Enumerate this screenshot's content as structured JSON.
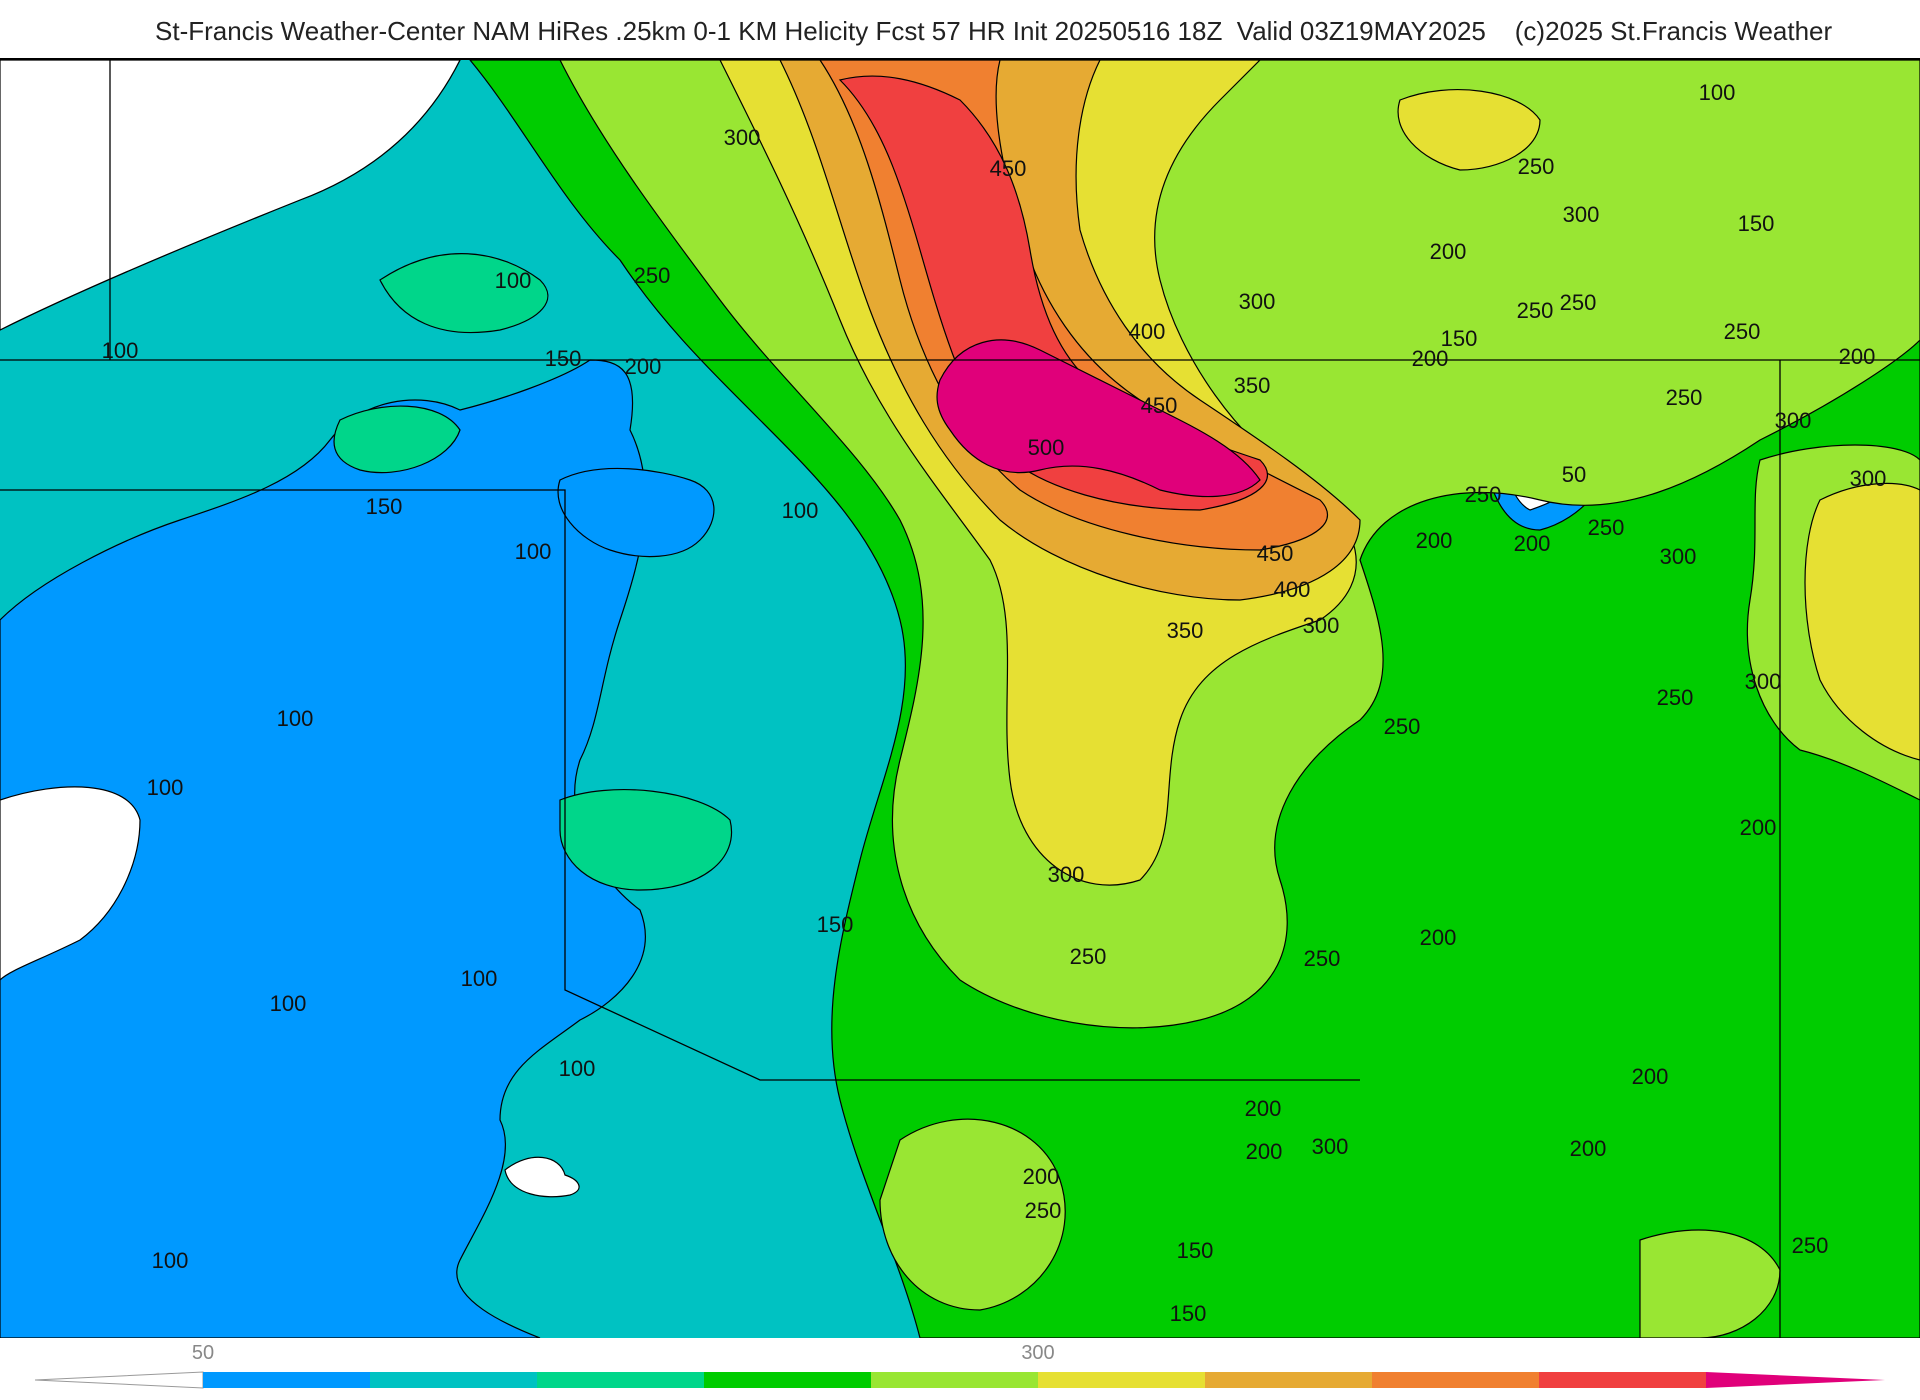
{
  "header": {
    "title": "St-Francis Weather-Center NAM HiRes .25km 0-1 KM Helicity Fcst 57 HR Init 20250516 18Z  Valid 03Z19MAY2025    (c)2025 St.Francis Weather"
  },
  "map": {
    "contour_labels": [
      "100",
      "100",
      "100",
      "100",
      "100",
      "100",
      "100",
      "100",
      "100",
      "100",
      "100",
      "150",
      "150",
      "150",
      "150",
      "150",
      "150",
      "150",
      "200",
      "200",
      "200",
      "200",
      "200",
      "200",
      "200",
      "200",
      "200",
      "200",
      "200",
      "200",
      "200",
      "250",
      "250",
      "250",
      "250",
      "250",
      "250",
      "250",
      "250",
      "250",
      "250",
      "250",
      "250",
      "250",
      "250",
      "300",
      "300",
      "300",
      "300",
      "300",
      "300",
      "300",
      "300",
      "300",
      "300",
      "350",
      "350",
      "400",
      "400",
      "450",
      "450",
      "450",
      "500",
      "50"
    ]
  },
  "colorbar": {
    "tick_labels": [
      "50",
      "300"
    ],
    "colors": [
      "#0099ff",
      "#00c2c2",
      "#00d68a",
      "#00cc00",
      "#99e633",
      "#e6e033",
      "#e6aa33",
      "#f08030",
      "#f04040",
      "#e0007a"
    ]
  }
}
